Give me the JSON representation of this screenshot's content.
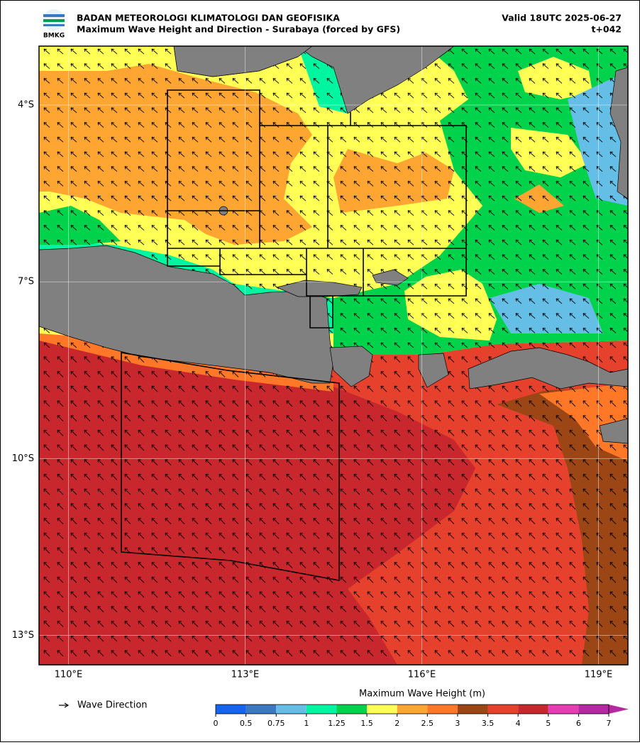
{
  "header": {
    "agency": "BADAN METEOROLOGI KLIMATOLOGI DAN GEOFISIKA",
    "title": "Maximum Wave Height and Direction - Surabaya (forced by GFS)",
    "valid": "Valid 18UTC 2025-06-27",
    "lead": "t+042",
    "logo_text": "BMKG"
  },
  "map": {
    "xlim": [
      109.5,
      119.5
    ],
    "ylim": [
      -13.5,
      -3
    ],
    "grid": true,
    "xticks": [
      {
        "value": 110,
        "label": "110°E"
      },
      {
        "value": 113,
        "label": "113°E"
      },
      {
        "value": 116,
        "label": "116°E"
      },
      {
        "value": 119,
        "label": "119°E"
      }
    ],
    "yticks": [
      {
        "value": -4,
        "label": "4°S"
      },
      {
        "value": -7,
        "label": "7°S"
      },
      {
        "value": -10,
        "label": "10°S"
      },
      {
        "value": -13,
        "label": "13°S"
      }
    ]
  },
  "legend": {
    "arrow_label": "Wave Direction"
  },
  "colorbar": {
    "title": "Maximum Wave Height (m)",
    "ticks": [
      0,
      0.5,
      0.75,
      1,
      1.25,
      1.5,
      2,
      2.5,
      3,
      3.5,
      4,
      5,
      6,
      7
    ],
    "colors": [
      "#1464f0",
      "#3c78c0",
      "#64bee6",
      "#00f5a0",
      "#00d24b",
      "#ffff55",
      "#ffa532",
      "#ff7828",
      "#9b4614",
      "#e6412d",
      "#c8282d",
      "#e63cb4",
      "#b428a0"
    ]
  }
}
